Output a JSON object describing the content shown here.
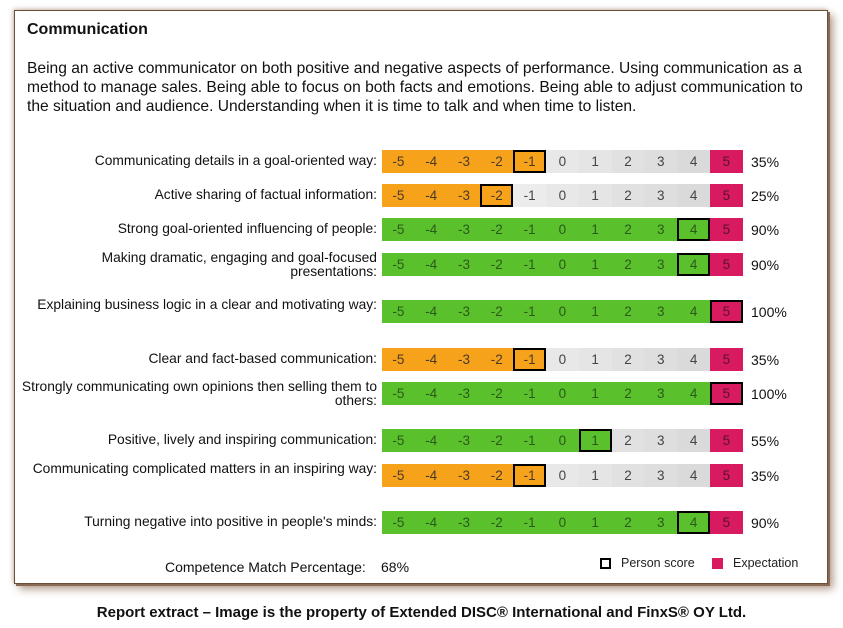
{
  "section": {
    "title": "Communication",
    "description": "Being an active communicator on both positive and negative aspects of performance. Using communication as a method to manage sales. Being able to focus on both facts and emotions. Being able to adjust communication to the situation and audience. Understanding when it is time to talk and when time to listen."
  },
  "scale_labels": [
    "-5",
    "-4",
    "-3",
    "-2",
    "-1",
    "0",
    "1",
    "2",
    "3",
    "4",
    "5"
  ],
  "colors": {
    "orange": "#f7a21b",
    "green": "#5ac12c",
    "expectation": "#d81b60"
  },
  "rows": [
    {
      "label": "Communicating details in a goal-oriented way:",
      "score": -1,
      "percent": "35%"
    },
    {
      "label": "Active sharing of factual information:",
      "score": -2,
      "percent": "25%"
    },
    {
      "label": "Strong goal-oriented influencing of people:",
      "score": 4,
      "percent": "90%"
    },
    {
      "label": "Making dramatic, engaging and goal-focused presentations:",
      "score": 4,
      "percent": "90%"
    },
    {
      "label": "Explaining business logic in a clear and motivating way:",
      "score": 5,
      "percent": "100%"
    },
    {
      "label": "Clear and fact-based communication:",
      "score": -1,
      "percent": "35%"
    },
    {
      "label": "Strongly communicating own opinions then selling them to others:",
      "score": 5,
      "percent": "100%"
    },
    {
      "label": "Positive, lively and inspiring communication:",
      "score": 1,
      "percent": "55%"
    },
    {
      "label": "Communicating complicated matters in an inspiring way:",
      "score": -1,
      "percent": "35%"
    },
    {
      "label": "Turning negative into positive in people's minds:",
      "score": 4,
      "percent": "90%"
    }
  ],
  "footer": {
    "label": "Competence Match Percentage:",
    "value": "68%",
    "legend_person": "Person score",
    "legend_expectation": "Expectation"
  },
  "caption": "Report extract – Image is the property of Extended DISC® International and FinxS® OY Ltd."
}
